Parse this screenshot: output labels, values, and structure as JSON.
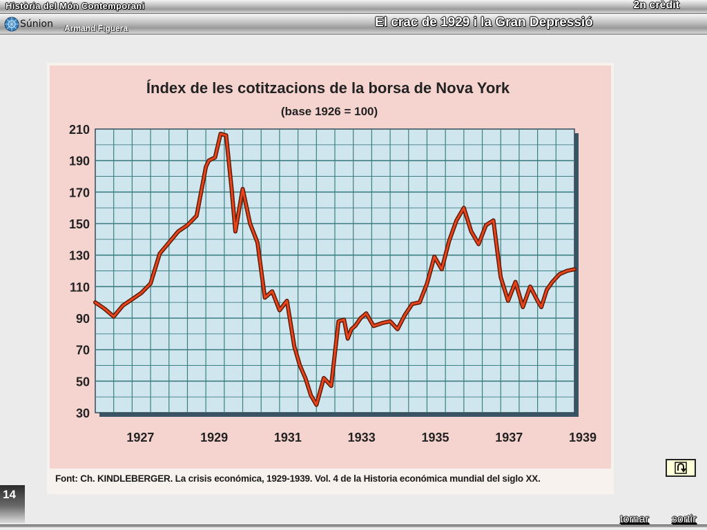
{
  "header": {
    "course_title": "Història del Món Contemporani",
    "credit": "2n crèdit",
    "brand": "Súnion",
    "author": "Armand Figuera",
    "main_title": "El crac de 1929 i la Gran Depressió"
  },
  "chart_data": {
    "type": "line",
    "title": "Índex de les cotitzacions de la borsa de Nova York",
    "subtitle": "(base 1926 = 100)",
    "xlabel": "",
    "ylabel": "",
    "xlim": [
      1926,
      1939
    ],
    "ylim": [
      30,
      210
    ],
    "y_ticks": [
      30,
      50,
      70,
      90,
      110,
      130,
      150,
      170,
      190,
      210
    ],
    "x_tick_labels": [
      "1927",
      "1929",
      "1931",
      "1933",
      "1935",
      "1937",
      "1939"
    ],
    "x_tick_values": [
      1927,
      1929,
      1931,
      1933,
      1935,
      1937,
      1939
    ],
    "grid": true,
    "series": [
      {
        "name": "",
        "color": "#e8451c",
        "x": [
          1926.0,
          1926.25,
          1926.5,
          1926.75,
          1927.0,
          1927.25,
          1927.5,
          1927.75,
          1928.0,
          1928.25,
          1928.5,
          1928.75,
          1929.0,
          1929.08,
          1929.25,
          1929.4,
          1929.55,
          1929.7,
          1929.8,
          1930.0,
          1930.2,
          1930.4,
          1930.6,
          1930.8,
          1931.0,
          1931.2,
          1931.4,
          1931.55,
          1931.7,
          1931.85,
          1932.0,
          1932.2,
          1932.4,
          1932.6,
          1932.75,
          1932.85,
          1932.95,
          1933.05,
          1933.2,
          1933.35,
          1933.55,
          1933.8,
          1934.0,
          1934.2,
          1934.4,
          1934.6,
          1934.8,
          1935.0,
          1935.2,
          1935.4,
          1935.6,
          1935.8,
          1936.0,
          1936.2,
          1936.4,
          1936.6,
          1936.8,
          1937.0,
          1937.2,
          1937.4,
          1937.6,
          1937.8,
          1938.0,
          1938.1,
          1938.25,
          1938.4,
          1938.6,
          1938.8,
          1939.0
        ],
        "y": [
          100,
          96,
          91,
          98,
          102,
          106,
          112,
          131,
          138,
          145,
          149,
          155,
          186,
          190,
          192,
          207,
          206,
          172,
          145,
          172,
          150,
          138,
          103,
          107,
          95,
          101,
          72,
          60,
          52,
          41,
          35,
          52,
          47,
          88,
          89,
          77,
          83,
          85,
          90,
          93,
          85,
          87,
          88,
          83,
          92,
          99,
          100,
          112,
          129,
          121,
          139,
          152,
          160,
          145,
          137,
          149,
          152,
          116,
          101,
          113,
          97,
          110,
          101,
          97,
          108,
          113,
          118,
          120,
          121
        ]
      }
    ],
    "source": "Font: Ch. KINDLEBERGER. La crisis económica, 1929-1939. Vol. 4 de la Historia económica mundial del siglo XX."
  },
  "footer": {
    "page_number": "14",
    "back_button_icon": "return-arrow-icon",
    "nav_tornar": "tornar",
    "nav_sortir": "sortir"
  }
}
